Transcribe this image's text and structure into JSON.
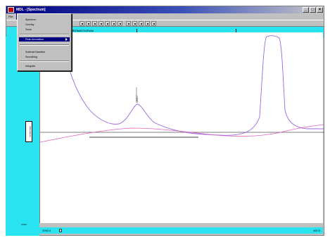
{
  "window": {
    "title": "MDL - [Spectrum]"
  },
  "menubar": {
    "items": [
      "File",
      "Edit",
      "View",
      "Acquisition",
      "Tools"
    ],
    "open_index": 1
  },
  "info_row": {
    "text": "CHROMATOGRAM"
  },
  "dropdown": {
    "items": [
      {
        "label": "Spectrum",
        "highlighted": false
      },
      {
        "label": "Overlay",
        "highlighted": false
      },
      {
        "label": "Zoom",
        "highlighted": false
      },
      {
        "label": "Peak Annotation",
        "highlighted": true,
        "submenu": true
      },
      {
        "label": "Subtract Baseline",
        "highlighted": false
      },
      {
        "label": "Smoothing",
        "highlighted": false
      },
      {
        "label": "Integrate",
        "highlighted": false
      }
    ]
  },
  "axis": {
    "y_top": "A",
    "y_mid": "Absorbance",
    "y_bottom": "0.000",
    "x_start": "2000.0",
    "x_end": "400.0"
  },
  "peak_label": "1645.7",
  "colors": {
    "cyan": "#29e3f0",
    "purple_trace": "#9966dd",
    "pink_trace": "#e060c0"
  }
}
